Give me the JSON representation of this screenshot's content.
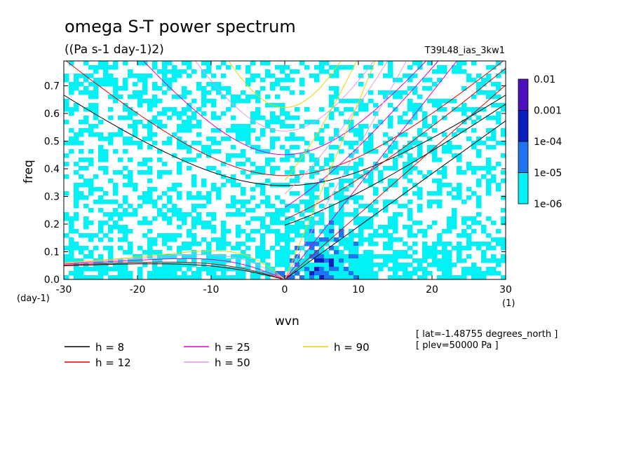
{
  "chart_data": {
    "type": "heatmap",
    "title": "omega S-T power spectrum",
    "subtitle": "((Pa s-1 day-1)2)",
    "run_label": "T39L48_ias_3kw1",
    "xlabel": "wvn",
    "ylabel": "freq",
    "x_unit": "(1)",
    "y_unit": "(day-1)",
    "xlim": [
      -30,
      30
    ],
    "ylim": [
      0,
      0.79
    ],
    "x_ticks": [
      "-30",
      "-20",
      "-10",
      "0",
      "10",
      "20",
      "30"
    ],
    "y_ticks": [
      "0.0",
      "0.1",
      "0.2",
      "0.3",
      "0.4",
      "0.5",
      "0.6",
      "0.7"
    ],
    "colorbar": {
      "labels": [
        "0.01",
        "0.001",
        "1e-04",
        "1e-05",
        "1e-06"
      ],
      "colors": [
        "#4f0fbf",
        "#0a1fbf",
        "#1f72f0",
        "#00f2f5"
      ]
    },
    "dispersion_curves": [
      {
        "name": "h =  8",
        "h": 8,
        "color": "#000000"
      },
      {
        "name": "h = 12",
        "h": 12,
        "color": "#e00000"
      },
      {
        "name": "h = 25",
        "h": 25,
        "color": "#e000c8"
      },
      {
        "name": "h = 50",
        "h": 50,
        "color": "#e09ae0"
      },
      {
        "name": "h = 90",
        "h": 90,
        "color": "#e8d400"
      }
    ],
    "annotations": [
      "[ lat=-1.48755 degrees_north ]",
      "[ plev=50000 Pa ]"
    ]
  }
}
